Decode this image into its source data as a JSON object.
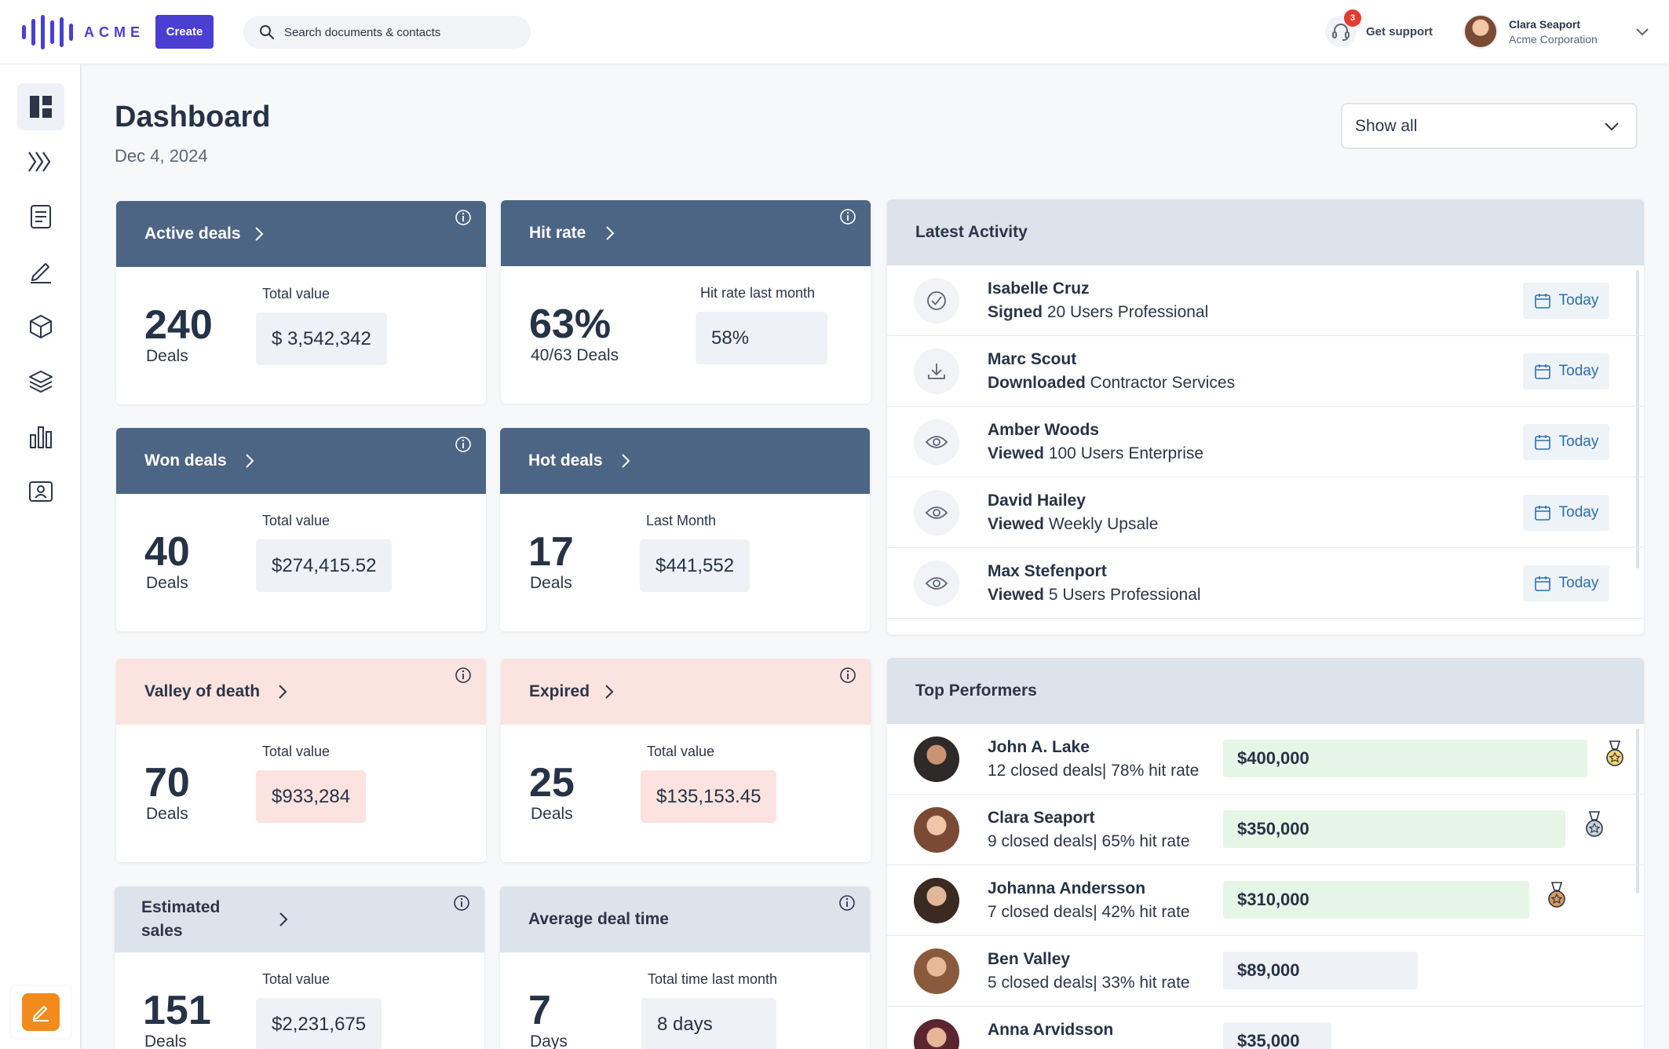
{
  "brand": {
    "name": "ACME",
    "accent": "#4b3fd1"
  },
  "header": {
    "create_label": "Create",
    "search_placeholder": "Search documents & contacts",
    "support_label": "Get support",
    "support_badge": "3",
    "user_name": "Clara Seaport",
    "user_org": "Acme Corporation"
  },
  "sidebar": {
    "items": [
      {
        "icon": "dashboard-icon",
        "active": true
      },
      {
        "icon": "pipeline-icon"
      },
      {
        "icon": "document-icon"
      },
      {
        "icon": "pen-icon"
      },
      {
        "icon": "box-icon"
      },
      {
        "icon": "layers-icon"
      },
      {
        "icon": "bar-chart-icon"
      },
      {
        "icon": "contact-card-icon"
      }
    ],
    "fab_icon": "edit-icon"
  },
  "page": {
    "title": "Dashboard",
    "date": "Dec 4, 2024",
    "filter": "Show all"
  },
  "kpis": {
    "active": {
      "title": "Active deals",
      "count": "240",
      "unit": "Deals",
      "label": "Total value",
      "value": "$ 3,542,342"
    },
    "hitrate": {
      "title": "Hit rate",
      "count": "63%",
      "unit": "40/63 Deals",
      "label": "Hit rate last month",
      "value": "58%"
    },
    "won": {
      "title": "Won deals",
      "count": "40",
      "unit": "Deals",
      "label": "Total value",
      "value": "$274,415.52"
    },
    "hot": {
      "title": "Hot deals",
      "count": "17",
      "unit": "Deals",
      "label": "Last Month",
      "value": "$441,552"
    },
    "valley": {
      "title": "Valley of death",
      "count": "70",
      "unit": "Deals",
      "label": "Total value",
      "value": "$933,284"
    },
    "expired": {
      "title": "Expired",
      "count": "25",
      "unit": "Deals",
      "label": "Total value",
      "value": "$135,153.45"
    },
    "estimated": {
      "title_line1": "Estimated",
      "title_line2": "sales",
      "count": "151",
      "unit": "Deals",
      "label": "Total value",
      "value": "$2,231,675"
    },
    "avgtime": {
      "title": "Average deal time",
      "count": "7",
      "unit": "Days",
      "label": "Total time last month",
      "value": "8 days"
    }
  },
  "activity": {
    "title": "Latest Activity",
    "items": [
      {
        "name": "Isabelle Cruz",
        "action": "Signed",
        "object": " 20 Users Professional",
        "when": "Today",
        "icon": "check-circle-icon"
      },
      {
        "name": "Marc Scout",
        "action": "Downloaded",
        "object": " Contractor Services",
        "when": "Today",
        "icon": "download-icon"
      },
      {
        "name": "Amber Woods",
        "action": "Viewed",
        "object": " 100 Users Enterprise",
        "when": "Today",
        "icon": "eye-icon"
      },
      {
        "name": "David Hailey",
        "action": "Viewed",
        "object": " Weekly Upsale",
        "when": "Today",
        "icon": "eye-icon"
      },
      {
        "name": "Max Stefenport",
        "action": "Viewed",
        "object": " 5 Users Professional",
        "when": "Today",
        "icon": "eye-icon"
      }
    ]
  },
  "performers": {
    "title": "Top Performers",
    "items": [
      {
        "name": "John A. Lake",
        "stats": "12 closed deals| 78% hit rate",
        "amount": "$400,000",
        "medal": "gold"
      },
      {
        "name": "Clara Seaport",
        "stats": "9 closed deals| 65% hit rate",
        "amount": "$350,000",
        "medal": "silver"
      },
      {
        "name": "Johanna Andersson",
        "stats": "7 closed deals| 42% hit rate",
        "amount": "$310,000",
        "medal": "bronze"
      },
      {
        "name": "Ben Valley",
        "stats": "5 closed deals| 33% hit rate",
        "amount": "$89,000",
        "medal": ""
      },
      {
        "name": "Anna Arvidsson",
        "stats": "",
        "amount": "$35,000",
        "medal": ""
      }
    ]
  },
  "colors": {
    "header_dark": "#4d6584",
    "header_pink": "#fbe3e0",
    "header_light": "#dde3ea",
    "today_text": "#2c6fb0",
    "bar_green": "#e6f6e6"
  }
}
